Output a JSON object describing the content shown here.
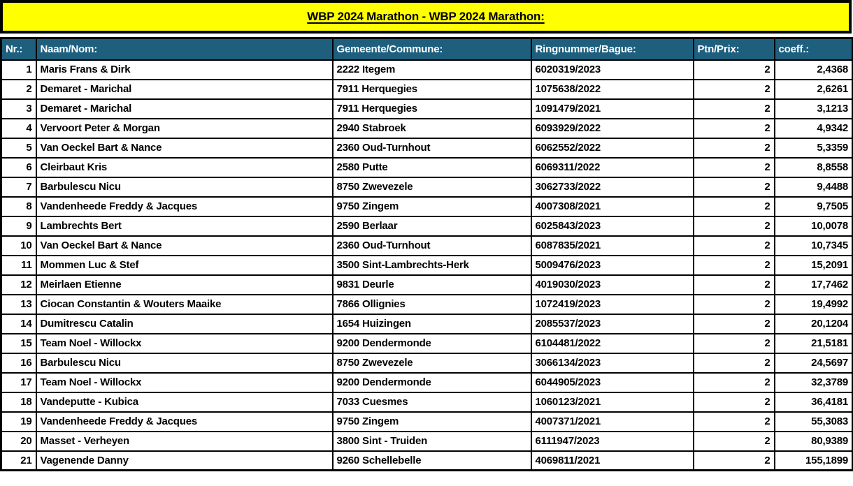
{
  "title": "WBP 2024 Marathon - WBP 2024 Marathon:",
  "colors": {
    "banner_bg": "#ffff00",
    "header_bg": "#1e5f7e",
    "header_text": "#ffffff",
    "border": "#000000",
    "body_text": "#000000"
  },
  "table": {
    "columns": [
      {
        "key": "nr",
        "label": "Nr.:"
      },
      {
        "key": "name",
        "label": "Naam/Nom:"
      },
      {
        "key": "commune",
        "label": "Gemeente/Commune:"
      },
      {
        "key": "ring",
        "label": "Ringnummer/Bague:"
      },
      {
        "key": "points",
        "label": "Ptn/Prix:"
      },
      {
        "key": "coeff",
        "label": "coeff.:"
      }
    ],
    "rows": [
      [
        "1",
        "Maris Frans & Dirk",
        "2222 Itegem",
        "6020319/2023",
        "2",
        "2,4368"
      ],
      [
        "2",
        "Demaret - Marichal",
        "7911 Herquegies",
        "1075638/2022",
        "2",
        "2,6261"
      ],
      [
        "3",
        "Demaret - Marichal",
        "7911 Herquegies",
        "1091479/2021",
        "2",
        "3,1213"
      ],
      [
        "4",
        "Vervoort Peter & Morgan",
        "2940 Stabroek",
        "6093929/2022",
        "2",
        "4,9342"
      ],
      [
        "5",
        "Van Oeckel Bart & Nance",
        "2360 Oud-Turnhout",
        "6062552/2022",
        "2",
        "5,3359"
      ],
      [
        "6",
        "Cleirbaut Kris",
        "2580 Putte",
        "6069311/2022",
        "2",
        "8,8558"
      ],
      [
        "7",
        "Barbulescu Nicu",
        "8750 Zwevezele",
        "3062733/2022",
        "2",
        "9,4488"
      ],
      [
        "8",
        "Vandenheede Freddy & Jacques",
        "9750 Zingem",
        "4007308/2021",
        "2",
        "9,7505"
      ],
      [
        "9",
        "Lambrechts Bert",
        "2590 Berlaar",
        "6025843/2023",
        "2",
        "10,0078"
      ],
      [
        "10",
        "Van Oeckel Bart & Nance",
        "2360 Oud-Turnhout",
        "6087835/2021",
        "2",
        "10,7345"
      ],
      [
        "11",
        "Mommen Luc & Stef",
        "3500 Sint-Lambrechts-Herk",
        "5009476/2023",
        "2",
        "15,2091"
      ],
      [
        "12",
        "Meirlaen Etienne",
        "9831 Deurle",
        "4019030/2023",
        "2",
        "17,7462"
      ],
      [
        "13",
        "Ciocan Constantin & Wouters Maaike",
        "7866 Ollignies",
        "1072419/2023",
        "2",
        "19,4992"
      ],
      [
        "14",
        "Dumitrescu Catalin",
        "1654 Huizingen",
        "2085537/2023",
        "2",
        "20,1204"
      ],
      [
        "15",
        "Team Noel - Willockx",
        "9200 Dendermonde",
        "6104481/2022",
        "2",
        "21,5181"
      ],
      [
        "16",
        "Barbulescu Nicu",
        "8750 Zwevezele",
        "3066134/2023",
        "2",
        "24,5697"
      ],
      [
        "17",
        "Team Noel - Willockx",
        "9200 Dendermonde",
        "6044905/2023",
        "2",
        "32,3789"
      ],
      [
        "18",
        "Vandeputte - Kubica",
        "7033 Cuesmes",
        "1060123/2021",
        "2",
        "36,4181"
      ],
      [
        "19",
        "Vandenheede Freddy & Jacques",
        "9750 Zingem",
        "4007371/2021",
        "2",
        "55,3083"
      ],
      [
        "20",
        "Masset - Verheyen",
        "3800 Sint - Truiden",
        "6111947/2023",
        "2",
        "80,9389"
      ],
      [
        "21",
        "Vagenende Danny",
        "9260 Schellebelle",
        "4069811/2021",
        "2",
        "155,1899"
      ]
    ]
  }
}
